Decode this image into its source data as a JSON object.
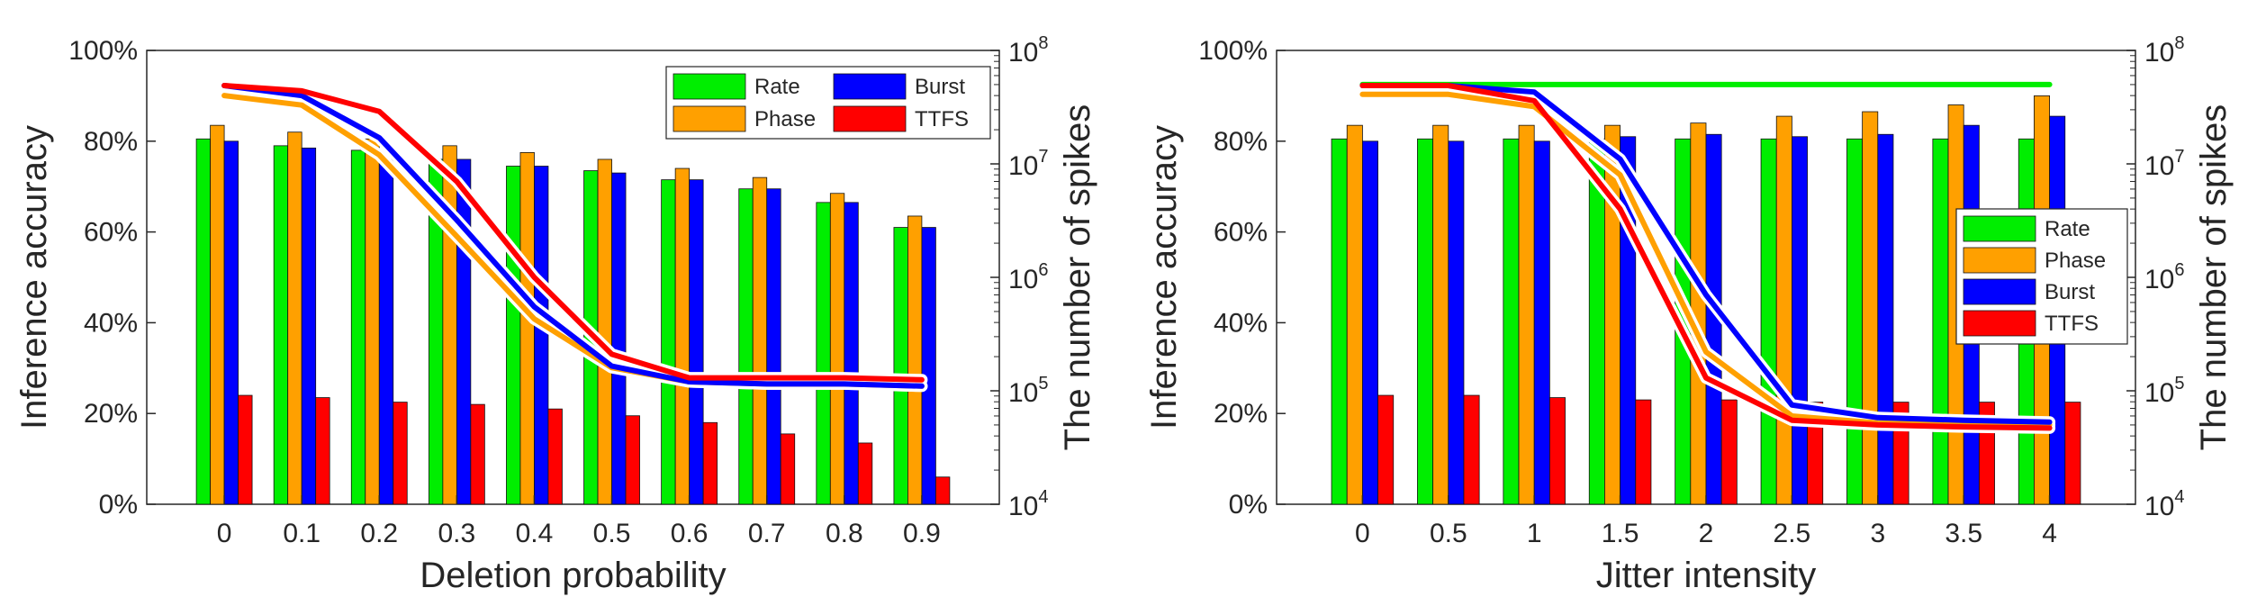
{
  "colors": {
    "rate": "#00ee00",
    "phase": "#ffa000",
    "burst": "#0000ff",
    "ttfs": "#ff0000"
  },
  "chart_data": [
    {
      "type": "bar",
      "title": "",
      "xlabel": "Deletion probability",
      "ylabel": "Inference accuracy",
      "y2label": "The number of spikes",
      "categories": [
        "0",
        "0.1",
        "0.2",
        "0.3",
        "0.4",
        "0.5",
        "0.6",
        "0.7",
        "0.8",
        "0.9"
      ],
      "ylim": [
        0,
        100
      ],
      "yticks": [
        "0%",
        "20%",
        "40%",
        "60%",
        "80%",
        "100%"
      ],
      "y2scale": "log",
      "y2lim": [
        10000,
        100000000
      ],
      "y2ticks": [
        {
          "base": "10",
          "exp": "4"
        },
        {
          "base": "10",
          "exp": "5"
        },
        {
          "base": "10",
          "exp": "6"
        },
        {
          "base": "10",
          "exp": "7"
        },
        {
          "base": "10",
          "exp": "8"
        }
      ],
      "legend_position": "top-right",
      "legend_layout": "2x2",
      "grid": false,
      "series": [
        {
          "name": "Rate",
          "color_key": "rate",
          "values": [
            80.5,
            79,
            78,
            76,
            74.5,
            73.5,
            71.5,
            69.5,
            66.5,
            61
          ],
          "spikes": [
            null,
            null,
            null,
            null,
            null,
            null,
            null,
            null,
            null,
            null
          ]
        },
        {
          "name": "Phase",
          "color_key": "phase",
          "values": [
            83.5,
            82,
            80.5,
            79,
            77.5,
            76,
            74,
            72,
            68.5,
            63.5
          ],
          "spikes": [
            40000000,
            33000000,
            12000000,
            2300000,
            430000,
            160000,
            120000,
            115000,
            115000,
            110000
          ]
        },
        {
          "name": "Burst",
          "color_key": "burst",
          "values": [
            80,
            78.5,
            76,
            76,
            74.5,
            73,
            71.5,
            69.5,
            66.5,
            61
          ],
          "spikes": [
            49000000,
            40000000,
            17000000,
            3200000,
            550000,
            165000,
            120000,
            115000,
            115000,
            110000
          ]
        },
        {
          "name": "TTFS",
          "color_key": "ttfs",
          "values": [
            24,
            23.5,
            22.5,
            22,
            21,
            19.5,
            18,
            15.5,
            13.5,
            6
          ],
          "spikes": [
            49000000,
            44000000,
            29000000,
            7000000,
            1000000,
            210000,
            130000,
            130000,
            130000,
            125000
          ]
        }
      ]
    },
    {
      "type": "bar",
      "title": "",
      "xlabel": "Jitter intensity",
      "ylabel": "Inference accuracy",
      "y2label": "The number of spikes",
      "categories": [
        "0",
        "0.5",
        "1",
        "1.5",
        "2",
        "2.5",
        "3",
        "3.5",
        "4"
      ],
      "ylim": [
        0,
        100
      ],
      "yticks": [
        "0%",
        "20%",
        "40%",
        "60%",
        "80%",
        "100%"
      ],
      "y2scale": "log",
      "y2lim": [
        10000,
        100000000
      ],
      "y2ticks": [
        {
          "base": "10",
          "exp": "4"
        },
        {
          "base": "10",
          "exp": "5"
        },
        {
          "base": "10",
          "exp": "6"
        },
        {
          "base": "10",
          "exp": "7"
        },
        {
          "base": "10",
          "exp": "8"
        }
      ],
      "legend_position": "right",
      "legend_layout": "1x4",
      "grid": false,
      "series": [
        {
          "name": "Rate",
          "color_key": "rate",
          "values": [
            80.5,
            80.5,
            80.5,
            80.5,
            80.5,
            80.5,
            80.5,
            80.5,
            80.5
          ],
          "spikes": [
            50000000,
            50000000,
            50000000,
            50000000,
            50000000,
            50000000,
            50000000,
            50000000,
            50000000
          ]
        },
        {
          "name": "Phase",
          "color_key": "phase",
          "values": [
            83.5,
            83.5,
            83.5,
            83.5,
            84,
            85.5,
            86.5,
            88,
            90
          ],
          "spikes": [
            41000000,
            41000000,
            32000000,
            8000000,
            220000,
            60000,
            52000,
            50000,
            50000
          ]
        },
        {
          "name": "Burst",
          "color_key": "burst",
          "values": [
            80,
            80,
            80,
            81,
            81.5,
            81,
            81.5,
            83.5,
            85.5
          ],
          "spikes": [
            49000000,
            49000000,
            43000000,
            11000000,
            700000,
            75000,
            58000,
            55000,
            53000
          ]
        },
        {
          "name": "TTFS",
          "color_key": "ttfs",
          "values": [
            24,
            24,
            23.5,
            23,
            23,
            22.5,
            22.5,
            22.5,
            22.5
          ],
          "spikes": [
            49000000,
            49000000,
            36000000,
            4000000,
            130000,
            55000,
            50000,
            48000,
            47000
          ]
        }
      ]
    }
  ]
}
